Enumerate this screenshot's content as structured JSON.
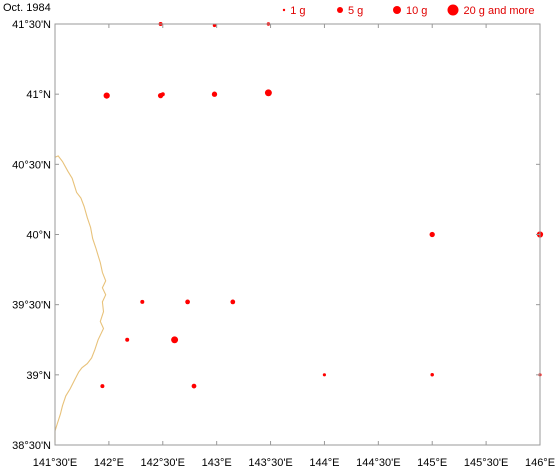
{
  "title": "Oct. 1984",
  "colors": {
    "marker": "#ff0000",
    "legend_text": "#e00000",
    "coastline": "#e8c27a",
    "frame": "#999999",
    "background": "#ffffff"
  },
  "legend": [
    {
      "label": "1 g",
      "size_g": 1
    },
    {
      "label": "5 g",
      "size_g": 5
    },
    {
      "label": "10 g",
      "size_g": 10
    },
    {
      "label": "20 g and more",
      "size_g": 20
    }
  ],
  "axes": {
    "lon_range": [
      141.5,
      146.0
    ],
    "lat_range": [
      38.5,
      41.5
    ],
    "x_ticks": [
      {
        "value": 141.5,
        "label": "141°30'E"
      },
      {
        "value": 142.0,
        "label": "142°E"
      },
      {
        "value": 142.5,
        "label": "142°30'E"
      },
      {
        "value": 143.0,
        "label": "143°E"
      },
      {
        "value": 143.5,
        "label": "143°30'E"
      },
      {
        "value": 144.0,
        "label": "144°E"
      },
      {
        "value": 144.5,
        "label": "144°30'E"
      },
      {
        "value": 145.0,
        "label": "145°E"
      },
      {
        "value": 145.5,
        "label": "145°30'E"
      },
      {
        "value": 146.0,
        "label": "146°E"
      }
    ],
    "y_ticks": [
      {
        "value": 41.5,
        "label": "41°30'N"
      },
      {
        "value": 41.0,
        "label": "41°N"
      },
      {
        "value": 40.5,
        "label": "40°30'N"
      },
      {
        "value": 40.0,
        "label": "40°N"
      },
      {
        "value": 39.5,
        "label": "39°30'N"
      },
      {
        "value": 39.0,
        "label": "39°N"
      },
      {
        "value": 38.5,
        "label": "38°30'N"
      }
    ]
  },
  "stations": [
    {
      "lon": 142.48,
      "lat": 41.5,
      "g": 1
    },
    {
      "lon": 142.98,
      "lat": 41.49,
      "g": 0.5
    },
    {
      "lon": 143.48,
      "lat": 41.5,
      "g": 0.5
    },
    {
      "lon": 141.98,
      "lat": 40.99,
      "g": 5
    },
    {
      "lon": 142.48,
      "lat": 40.99,
      "g": 3
    },
    {
      "lon": 142.5,
      "lat": 41.0,
      "g": 1
    },
    {
      "lon": 142.98,
      "lat": 41.0,
      "g": 3
    },
    {
      "lon": 143.48,
      "lat": 41.01,
      "g": 7
    },
    {
      "lon": 145.0,
      "lat": 40.0,
      "g": 3
    },
    {
      "lon": 146.0,
      "lat": 40.0,
      "g": 5
    },
    {
      "lon": 142.31,
      "lat": 39.52,
      "g": 1
    },
    {
      "lon": 142.73,
      "lat": 39.52,
      "g": 2
    },
    {
      "lon": 143.15,
      "lat": 39.52,
      "g": 2
    },
    {
      "lon": 142.17,
      "lat": 39.25,
      "g": 1
    },
    {
      "lon": 142.61,
      "lat": 39.25,
      "g": 7
    },
    {
      "lon": 144.0,
      "lat": 39.0,
      "g": 0.3
    },
    {
      "lon": 145.0,
      "lat": 39.0,
      "g": 0.5
    },
    {
      "lon": 146.0,
      "lat": 39.0,
      "g": 0.3
    },
    {
      "lon": 141.94,
      "lat": 38.92,
      "g": 1
    },
    {
      "lon": 142.79,
      "lat": 38.92,
      "g": 2
    }
  ],
  "coastline": [
    [
      141.5,
      40.55
    ],
    [
      141.53,
      40.56
    ],
    [
      141.57,
      40.52
    ],
    [
      141.62,
      40.45
    ],
    [
      141.66,
      40.4
    ],
    [
      141.7,
      40.3
    ],
    [
      141.74,
      40.26
    ],
    [
      141.77,
      40.2
    ],
    [
      141.8,
      40.12
    ],
    [
      141.83,
      40.05
    ],
    [
      141.85,
      39.97
    ],
    [
      141.88,
      39.9
    ],
    [
      141.9,
      39.85
    ],
    [
      141.92,
      39.8
    ],
    [
      141.94,
      39.73
    ],
    [
      141.97,
      39.67
    ],
    [
      141.94,
      39.62
    ],
    [
      141.97,
      39.57
    ],
    [
      141.94,
      39.52
    ],
    [
      141.95,
      39.45
    ],
    [
      141.92,
      39.38
    ],
    [
      141.95,
      39.33
    ],
    [
      141.9,
      39.25
    ],
    [
      141.87,
      39.18
    ],
    [
      141.84,
      39.12
    ],
    [
      141.8,
      39.08
    ],
    [
      141.75,
      39.05
    ],
    [
      141.72,
      39.02
    ],
    [
      141.68,
      38.96
    ],
    [
      141.64,
      38.9
    ],
    [
      141.6,
      38.85
    ],
    [
      141.57,
      38.78
    ],
    [
      141.55,
      38.72
    ],
    [
      141.52,
      38.65
    ],
    [
      141.5,
      38.6
    ],
    [
      141.5,
      38.52
    ]
  ]
}
